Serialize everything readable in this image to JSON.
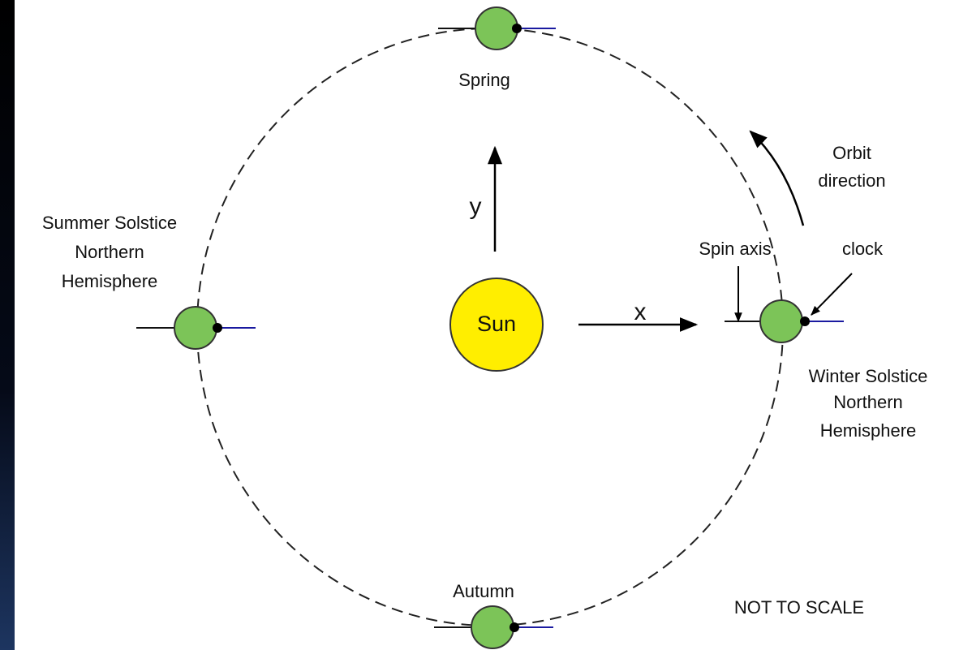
{
  "labels": {
    "spring": "Spring",
    "autumn": "Autumn",
    "summer": [
      "Summer Solstice",
      "Northern",
      "Hemisphere"
    ],
    "winter": [
      "Winter Solstice",
      "Northern",
      "Hemisphere"
    ],
    "sun": "Sun",
    "x_axis": "x",
    "y_axis": "y",
    "spin_axis": "Spin axis",
    "clock": "clock",
    "orbit": [
      "Orbit",
      "direction"
    ],
    "note": "NOT TO SCALE"
  }
}
